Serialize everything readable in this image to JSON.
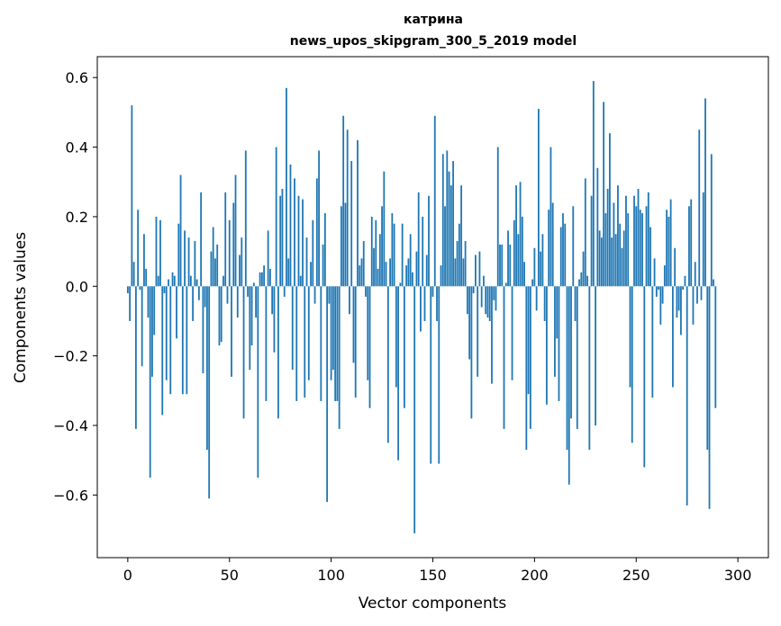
{
  "chart_data": {
    "type": "bar",
    "title_line1": "катрина",
    "title_line2": "news_upos_skipgram_300_5_2019 model",
    "xlabel": "Vector components",
    "ylabel": "Components values",
    "xlim": [
      -15,
      315
    ],
    "ylim": [
      -0.78,
      0.66
    ],
    "xticks": [
      0,
      50,
      100,
      150,
      200,
      250,
      300
    ],
    "xtick_labels": [
      "0",
      "50",
      "100",
      "150",
      "200",
      "250",
      "300"
    ],
    "yticks": [
      -0.6,
      -0.4,
      -0.2,
      0.0,
      0.2,
      0.4,
      0.6
    ],
    "ytick_labels": [
      "−0.6",
      "−0.4",
      "−0.2",
      "0.0",
      "0.2",
      "0.4",
      "0.6"
    ],
    "color": "#1f77b4",
    "values": [
      -0.02,
      -0.1,
      0.52,
      0.07,
      -0.41,
      0.22,
      -0.01,
      -0.23,
      0.15,
      0.05,
      -0.09,
      -0.55,
      -0.26,
      -0.14,
      0.2,
      0.03,
      0.19,
      -0.37,
      -0.02,
      -0.27,
      0.02,
      -0.31,
      0.04,
      0.03,
      -0.15,
      0.18,
      0.32,
      -0.31,
      0.16,
      -0.31,
      0.14,
      0.03,
      -0.1,
      0.13,
      0.02,
      -0.04,
      0.27,
      -0.25,
      -0.06,
      -0.47,
      -0.61,
      0.1,
      0.17,
      0.08,
      0.12,
      -0.17,
      -0.16,
      0.03,
      0.27,
      -0.05,
      0.19,
      -0.26,
      0.24,
      0.32,
      -0.09,
      0.09,
      0.14,
      -0.38,
      0.39,
      -0.03,
      -0.24,
      -0.17,
      0.01,
      -0.09,
      -0.55,
      0.04,
      0.04,
      0.06,
      -0.33,
      0.16,
      0.05,
      -0.08,
      -0.19,
      0.4,
      -0.38,
      0.26,
      0.28,
      -0.03,
      0.57,
      0.08,
      0.35,
      -0.24,
      0.31,
      -0.33,
      0.26,
      0.03,
      0.25,
      -0.32,
      0.14,
      -0.27,
      0.07,
      0.19,
      -0.05,
      0.31,
      0.39,
      -0.33,
      0.12,
      0.21,
      -0.62,
      -0.05,
      -0.27,
      -0.24,
      -0.33,
      -0.33,
      -0.41,
      0.23,
      0.49,
      0.24,
      0.45,
      -0.08,
      0.36,
      -0.22,
      -0.32,
      0.42,
      0.06,
      0.08,
      0.13,
      -0.03,
      -0.27,
      -0.35,
      0.2,
      0.11,
      0.19,
      0.05,
      0.15,
      0.23,
      0.33,
      0.07,
      -0.45,
      0.08,
      0.21,
      0.18,
      -0.29,
      -0.5,
      0.01,
      0.18,
      -0.35,
      0.06,
      0.08,
      0.15,
      0.04,
      -0.71,
      0.1,
      0.27,
      -0.13,
      0.2,
      -0.1,
      0.09,
      0.26,
      -0.51,
      -0.03,
      0.49,
      -0.1,
      -0.51,
      0.06,
      0.38,
      0.23,
      0.39,
      0.33,
      0.29,
      0.36,
      0.08,
      0.13,
      0.18,
      0.29,
      0.08,
      0.13,
      -0.08,
      -0.21,
      -0.38,
      -0.02,
      0.09,
      -0.26,
      0.1,
      -0.06,
      0.03,
      -0.08,
      -0.09,
      -0.1,
      -0.28,
      -0.04,
      -0.07,
      0.4,
      0.12,
      0.12,
      -0.41,
      0.01,
      0.16,
      0.12,
      -0.27,
      0.19,
      0.29,
      0.15,
      0.3,
      0.2,
      0.07,
      -0.47,
      -0.31,
      -0.41,
      0.02,
      0.11,
      -0.07,
      0.51,
      0.1,
      0.15,
      -0.1,
      -0.34,
      0.22,
      0.4,
      0.24,
      -0.26,
      -0.15,
      -0.33,
      0.17,
      0.21,
      0.18,
      -0.47,
      -0.57,
      -0.38,
      0.23,
      -0.1,
      -0.41,
      0.02,
      0.04,
      0.1,
      0.31,
      0.03,
      -0.47,
      0.26,
      0.59,
      -0.4,
      0.34,
      0.16,
      0.14,
      0.53,
      0.21,
      0.28,
      0.44,
      0.14,
      0.24,
      0.15,
      0.29,
      0.18,
      0.11,
      0.16,
      0.26,
      0.21,
      -0.29,
      -0.45,
      0.26,
      0.23,
      0.28,
      0.22,
      0.21,
      -0.52,
      0.23,
      0.27,
      0.17,
      -0.32,
      0.08,
      -0.03,
      -0.01,
      -0.11,
      -0.05,
      0.06,
      0.22,
      0.2,
      0.25,
      -0.29,
      0.11,
      -0.09,
      -0.07,
      -0.14,
      -0.01,
      0.03,
      -0.63,
      0.23,
      0.25,
      -0.11,
      0.07,
      -0.05,
      0.45,
      -0.04,
      0.27,
      0.54,
      -0.47,
      -0.64,
      0.38,
      0.02,
      -0.35
    ]
  }
}
